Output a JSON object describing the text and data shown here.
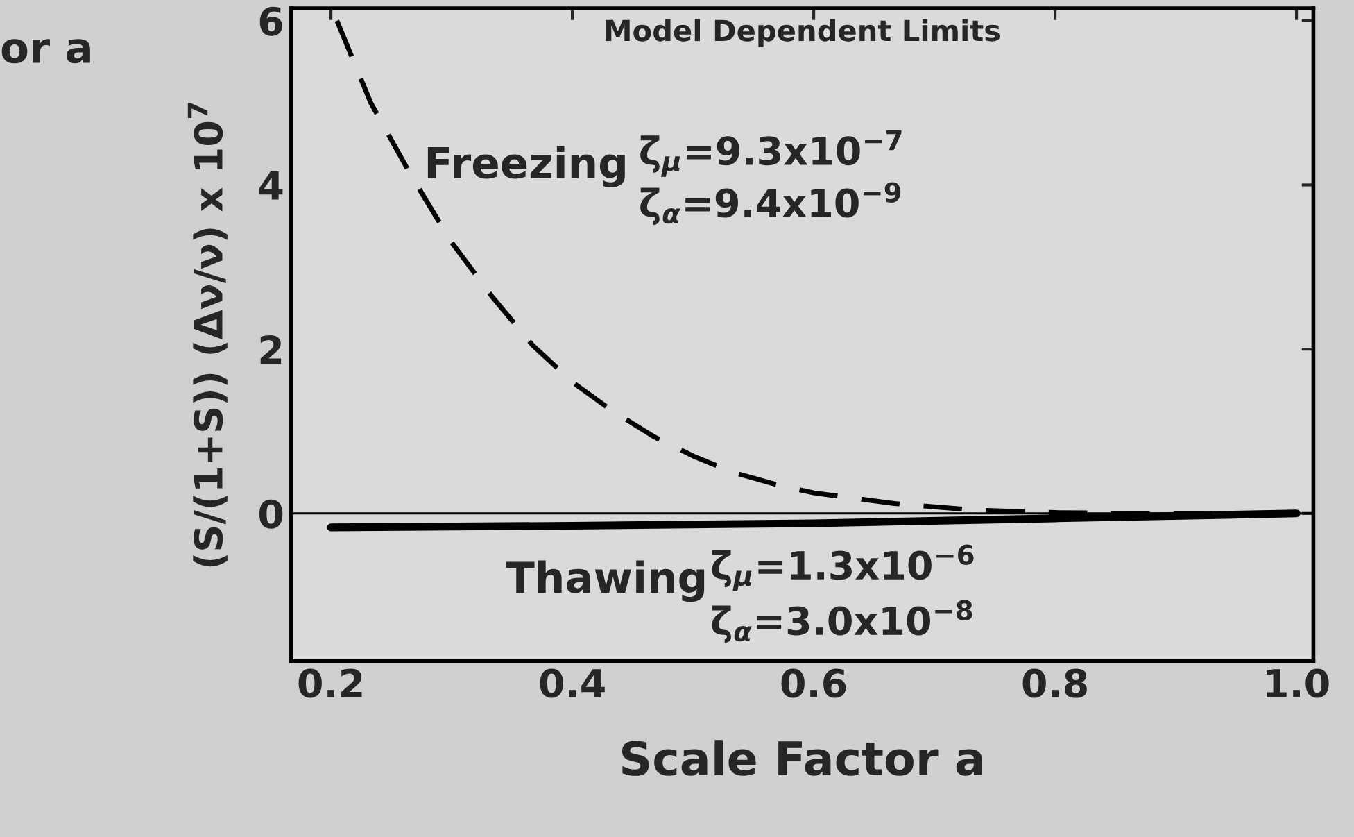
{
  "chart_data": {
    "type": "line",
    "xlabel": "Scale Factor a",
    "ylabel": "(S/(1+S)) (Δν/ν) x 10$^{7}$",
    "xlim": [
      0.167,
      1.014
    ],
    "ylim": [
      -1.8,
      6.15
    ],
    "xticks": [
      0.2,
      0.4,
      0.6,
      0.8,
      {
        "value": 1.0,
        "label": "1.0"
      }
    ],
    "yticks": [
      0,
      2,
      4,
      6
    ],
    "grid": false,
    "legend": false,
    "series": [
      {
        "color": "#000000",
        "line_style": "dashed",
        "x": [
          0.205,
          0.233,
          0.267,
          0.3,
          0.333,
          0.367,
          0.4,
          0.433,
          0.467,
          0.5,
          0.533,
          0.567,
          0.6,
          0.667,
          0.733,
          0.8,
          0.867,
          0.933,
          1.0
        ],
        "values": [
          6.0,
          5.0,
          4.1,
          3.3,
          2.65,
          2.05,
          1.6,
          1.25,
          0.94,
          0.7,
          0.5,
          0.36,
          0.25,
          0.12,
          0.04,
          0.01,
          0.0,
          0.0,
          0.0
        ]
      },
      {
        "color": "#000000",
        "line_style": "solid",
        "x": [
          0.2,
          0.4,
          0.6,
          0.8,
          1.0
        ],
        "values": [
          -0.17,
          -0.15,
          -0.12,
          -0.06,
          0.0
        ]
      }
    ],
    "ref_lines": [
      {
        "axis": "y",
        "value": 0,
        "color": "#000000"
      }
    ],
    "annotations": [
      "or a",
      "Model Dependent Limits",
      "Freezing",
      "ζ$_{μ}$=9.3x10$^{−7}$",
      "ζ$_{α}$=9.4x10$^{−9}$",
      "Thawing",
      "ζ$_{μ}$=1.3x10$^{−6}$",
      "ζ$_{α}$=3.0x10$^{−8}$"
    ]
  }
}
